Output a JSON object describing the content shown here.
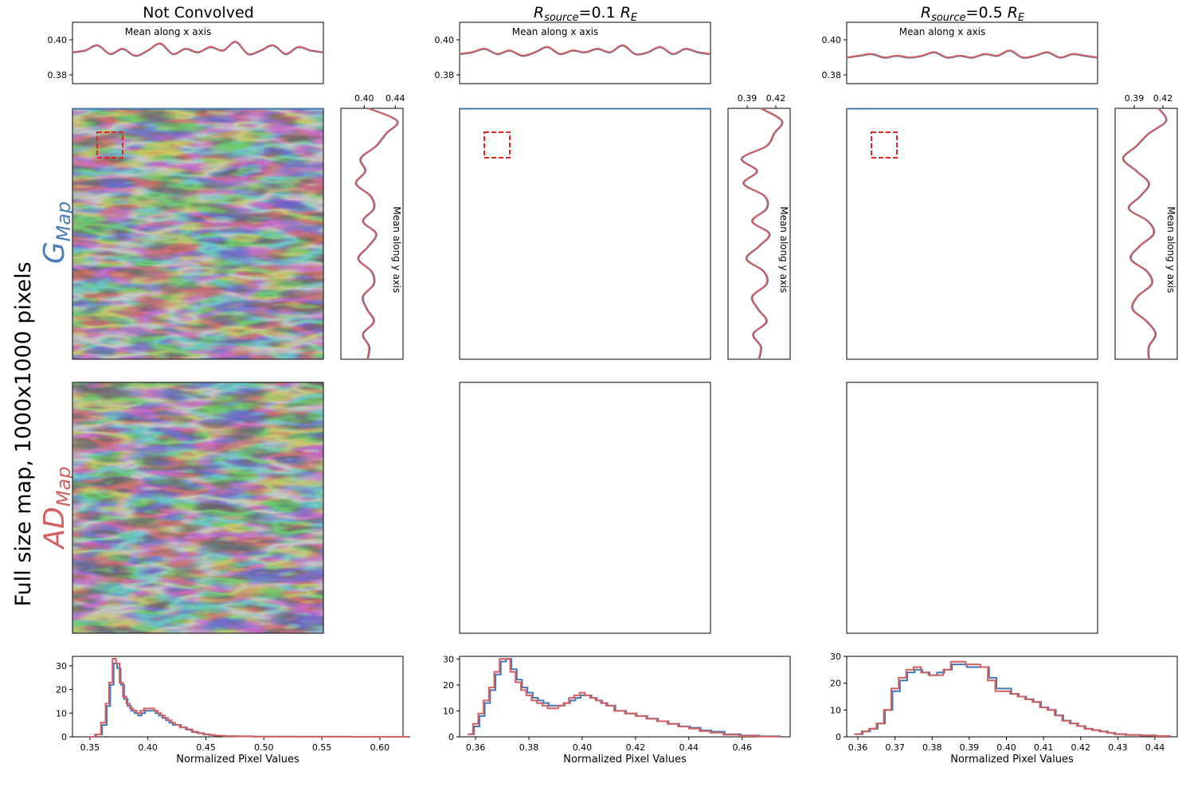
{
  "figure": {
    "side_label": "Full size map, 1000x1000 pixels",
    "row_labels": {
      "g": {
        "main": "G",
        "sub": "Map",
        "color": "#4a7fb5"
      },
      "ad": {
        "main": "AD",
        "sub": "Map",
        "color": "#d26262"
      }
    },
    "colors": {
      "g_line": "#3f78b4",
      "ad_line": "#d45f5f",
      "marker_box": "#e0281e",
      "axis": "#000000"
    }
  },
  "columns": [
    {
      "title_plain": "Not Convolved",
      "map_style": "sharp",
      "xprofile": {
        "title": "Mean along x axis",
        "yticks": [
          "0.38",
          "0.40"
        ],
        "ylim": [
          0.375,
          0.41
        ]
      },
      "yprofile": {
        "title": "Mean along y axis",
        "xticks": [
          "0.40",
          "0.44"
        ],
        "xlim": [
          0.37,
          0.45
        ]
      },
      "hist": {
        "xlabel": "Normalized Pixel Values",
        "xticks": [
          "0.35",
          "0.40",
          "0.45",
          "0.50",
          "0.55",
          "0.60"
        ],
        "yticks": [
          "0",
          "10",
          "20",
          "30"
        ],
        "xlim": [
          0.335,
          0.62
        ],
        "ylim": [
          0,
          34
        ]
      }
    },
    {
      "title_main": "R",
      "title_sub": "source",
      "title_mid": "=0.1 ",
      "title_main2": "R",
      "title_sub2": "E",
      "map_style": "medium",
      "xprofile": {
        "title": "Mean along x axis",
        "yticks": [
          "0.38",
          "0.40"
        ],
        "ylim": [
          0.375,
          0.41
        ]
      },
      "yprofile": {
        "title": "Mean along y axis",
        "xticks": [
          "0.39",
          "0.42"
        ],
        "xlim": [
          0.37,
          0.435
        ]
      },
      "hist": {
        "xlabel": "Normalized Pixel Values",
        "xticks": [
          "0.36",
          "0.38",
          "0.40",
          "0.42",
          "0.44",
          "0.46"
        ],
        "yticks": [
          "0",
          "10",
          "20",
          "30"
        ],
        "xlim": [
          0.354,
          0.478
        ],
        "ylim": [
          0,
          31
        ]
      }
    },
    {
      "title_main": "R",
      "title_sub": "source",
      "title_mid": "=0.5 ",
      "title_main2": "R",
      "title_sub2": "E",
      "map_style": "blurred",
      "xprofile": {
        "title": "Mean along x axis",
        "yticks": [
          "0.38",
          "0.40"
        ],
        "ylim": [
          0.375,
          0.41
        ]
      },
      "yprofile": {
        "title": "Mean along y axis",
        "xticks": [
          "0.39",
          "0.42"
        ],
        "xlim": [
          0.37,
          0.435
        ]
      },
      "hist": {
        "xlabel": "Normalized Pixel Values",
        "xticks": [
          "0.36",
          "0.37",
          "0.38",
          "0.39",
          "0.40",
          "0.41",
          "0.42",
          "0.43",
          "0.44"
        ],
        "yticks": [
          "0",
          "10",
          "20",
          "30"
        ],
        "xlim": [
          0.357,
          0.446
        ],
        "ylim": [
          0,
          30
        ]
      }
    }
  ],
  "chart_data": [
    {
      "type": "line",
      "name": "col1-xprofile",
      "x": [
        0,
        0.05,
        0.1,
        0.15,
        0.2,
        0.25,
        0.3,
        0.35,
        0.4,
        0.45,
        0.5,
        0.55,
        0.6,
        0.65,
        0.7,
        0.75,
        0.8,
        0.85,
        0.9,
        0.95,
        1.0
      ],
      "series": [
        {
          "values": [
            0.393,
            0.394,
            0.397,
            0.392,
            0.395,
            0.391,
            0.394,
            0.398,
            0.392,
            0.395,
            0.393,
            0.396,
            0.394,
            0.399,
            0.392,
            0.394,
            0.397,
            0.392,
            0.396,
            0.394,
            0.393
          ]
        }
      ]
    },
    {
      "type": "line",
      "name": "col1-yprofile",
      "y": [
        0,
        0.05,
        0.1,
        0.15,
        0.2,
        0.25,
        0.3,
        0.35,
        0.4,
        0.45,
        0.5,
        0.55,
        0.6,
        0.65,
        0.7,
        0.75,
        0.8,
        0.85,
        0.9,
        0.95,
        1.0
      ],
      "series": [
        {
          "values": [
            0.405,
            0.442,
            0.428,
            0.415,
            0.395,
            0.401,
            0.389,
            0.408,
            0.412,
            0.398,
            0.415,
            0.405,
            0.392,
            0.409,
            0.412,
            0.398,
            0.403,
            0.412,
            0.398,
            0.406,
            0.404
          ]
        }
      ]
    },
    {
      "type": "bar",
      "name": "col1-hist",
      "bin_centers": [
        0.352,
        0.357,
        0.362,
        0.365,
        0.368,
        0.371,
        0.374,
        0.377,
        0.38,
        0.383,
        0.386,
        0.389,
        0.392,
        0.395,
        0.398,
        0.401,
        0.404,
        0.407,
        0.41,
        0.413,
        0.416,
        0.419,
        0.422,
        0.425,
        0.43,
        0.435,
        0.44,
        0.445,
        0.45,
        0.455,
        0.46,
        0.47,
        0.48,
        0.5,
        0.55,
        0.6
      ],
      "series": [
        {
          "values": [
            0,
            1,
            5,
            13,
            22,
            31,
            29,
            22,
            16,
            13,
            11,
            10,
            9,
            10,
            11,
            11,
            11,
            10,
            9,
            8,
            7,
            6,
            5,
            5,
            4,
            3,
            2,
            1.5,
            1,
            0.7,
            0.5,
            0.3,
            0.2,
            0.1,
            0.05,
            0
          ]
        },
        {
          "values": [
            0,
            1,
            6,
            14,
            23,
            33,
            31,
            23,
            17,
            14,
            12,
            11,
            10,
            11,
            12,
            12,
            12,
            11,
            10,
            9,
            8,
            7,
            6,
            5,
            4,
            3.2,
            2.2,
            1.6,
            1.1,
            0.8,
            0.5,
            0.3,
            0.2,
            0.1,
            0.05,
            0
          ]
        }
      ]
    },
    {
      "type": "line",
      "name": "col2-xprofile",
      "x": [
        0,
        0.05,
        0.1,
        0.15,
        0.2,
        0.25,
        0.3,
        0.35,
        0.4,
        0.45,
        0.5,
        0.55,
        0.6,
        0.65,
        0.7,
        0.75,
        0.8,
        0.85,
        0.9,
        0.95,
        1.0
      ],
      "series": [
        {
          "values": [
            0.392,
            0.393,
            0.395,
            0.392,
            0.394,
            0.391,
            0.393,
            0.396,
            0.392,
            0.394,
            0.393,
            0.395,
            0.393,
            0.397,
            0.392,
            0.393,
            0.396,
            0.392,
            0.395,
            0.393,
            0.392
          ]
        }
      ]
    },
    {
      "type": "line",
      "name": "col2-yprofile",
      "y": [
        0,
        0.05,
        0.1,
        0.15,
        0.2,
        0.25,
        0.3,
        0.35,
        0.4,
        0.45,
        0.5,
        0.55,
        0.6,
        0.65,
        0.7,
        0.75,
        0.8,
        0.85,
        0.9,
        0.95,
        1.0
      ],
      "series": [
        {
          "values": [
            0.404,
            0.426,
            0.418,
            0.41,
            0.384,
            0.4,
            0.386,
            0.408,
            0.41,
            0.395,
            0.413,
            0.402,
            0.389,
            0.407,
            0.41,
            0.395,
            0.401,
            0.41,
            0.396,
            0.404,
            0.402
          ]
        }
      ]
    },
    {
      "type": "bar",
      "name": "col2-hist",
      "bin_centers": [
        0.358,
        0.36,
        0.362,
        0.364,
        0.366,
        0.368,
        0.37,
        0.372,
        0.374,
        0.376,
        0.378,
        0.38,
        0.382,
        0.384,
        0.386,
        0.388,
        0.39,
        0.392,
        0.394,
        0.396,
        0.398,
        0.4,
        0.402,
        0.404,
        0.406,
        0.408,
        0.41,
        0.414,
        0.418,
        0.422,
        0.426,
        0.43,
        0.434,
        0.438,
        0.442,
        0.446,
        0.45,
        0.456,
        0.462,
        0.47
      ],
      "series": [
        {
          "values": [
            1,
            4,
            8,
            13,
            18,
            24,
            29,
            30,
            26,
            22,
            19,
            17,
            15,
            14,
            13,
            12,
            12,
            12,
            13,
            14,
            15,
            16,
            16,
            15,
            14,
            13,
            12,
            10,
            9,
            8,
            7,
            6,
            5,
            4,
            3.5,
            2.5,
            2,
            1,
            0.5,
            0.2
          ]
        },
        {
          "values": [
            1,
            5,
            9,
            14,
            19,
            25,
            30,
            30,
            25,
            21,
            18,
            16,
            14,
            13,
            12,
            11,
            11,
            12,
            13,
            15,
            16,
            17,
            16,
            15,
            14,
            13,
            12,
            10,
            9,
            8,
            7,
            6,
            5,
            4,
            3.2,
            2.2,
            1.6,
            0.8,
            0.3,
            0.1
          ]
        }
      ]
    },
    {
      "type": "line",
      "name": "col3-xprofile",
      "x": [
        0,
        0.05,
        0.1,
        0.15,
        0.2,
        0.25,
        0.3,
        0.35,
        0.4,
        0.45,
        0.5,
        0.55,
        0.6,
        0.65,
        0.7,
        0.75,
        0.8,
        0.85,
        0.9,
        0.95,
        1.0
      ],
      "series": [
        {
          "values": [
            0.39,
            0.391,
            0.392,
            0.39,
            0.391,
            0.39,
            0.391,
            0.393,
            0.39,
            0.391,
            0.39,
            0.392,
            0.391,
            0.394,
            0.39,
            0.391,
            0.393,
            0.39,
            0.392,
            0.391,
            0.39
          ]
        }
      ]
    },
    {
      "type": "line",
      "name": "col3-yprofile",
      "y": [
        0,
        0.05,
        0.1,
        0.15,
        0.2,
        0.25,
        0.3,
        0.35,
        0.4,
        0.45,
        0.5,
        0.55,
        0.6,
        0.65,
        0.7,
        0.75,
        0.8,
        0.85,
        0.9,
        0.95,
        1.0
      ],
      "series": [
        {
          "values": [
            0.415,
            0.423,
            0.405,
            0.392,
            0.378,
            0.392,
            0.405,
            0.396,
            0.384,
            0.404,
            0.41,
            0.395,
            0.386,
            0.403,
            0.408,
            0.393,
            0.388,
            0.403,
            0.412,
            0.405,
            0.405
          ]
        }
      ]
    },
    {
      "type": "bar",
      "name": "col3-hist",
      "bin_centers": [
        0.36,
        0.362,
        0.364,
        0.366,
        0.368,
        0.37,
        0.372,
        0.374,
        0.376,
        0.378,
        0.38,
        0.382,
        0.384,
        0.386,
        0.388,
        0.39,
        0.392,
        0.394,
        0.396,
        0.398,
        0.4,
        0.402,
        0.404,
        0.406,
        0.408,
        0.41,
        0.412,
        0.414,
        0.416,
        0.418,
        0.42,
        0.422,
        0.424,
        0.426,
        0.428,
        0.43,
        0.434,
        0.438,
        0.442
      ],
      "series": [
        {
          "values": [
            1,
            2,
            3,
            5,
            10,
            17,
            21,
            24,
            25,
            24,
            23,
            24,
            25,
            27,
            27,
            26,
            26,
            26,
            22,
            18,
            18,
            16,
            15,
            14,
            13,
            11,
            10,
            8,
            6,
            5,
            4,
            3,
            2.5,
            2,
            1.5,
            1,
            0.7,
            0.5,
            0.3
          ]
        },
        {
          "values": [
            1,
            2,
            3,
            5,
            10,
            18,
            22,
            25,
            26,
            24,
            23,
            23,
            25,
            28,
            28,
            27,
            27,
            26,
            21,
            17,
            17,
            16,
            15,
            14,
            13,
            11,
            10,
            8,
            6,
            5,
            4,
            3,
            2.5,
            2,
            1.5,
            1,
            0.7,
            0.5,
            0.3
          ]
        }
      ]
    }
  ]
}
